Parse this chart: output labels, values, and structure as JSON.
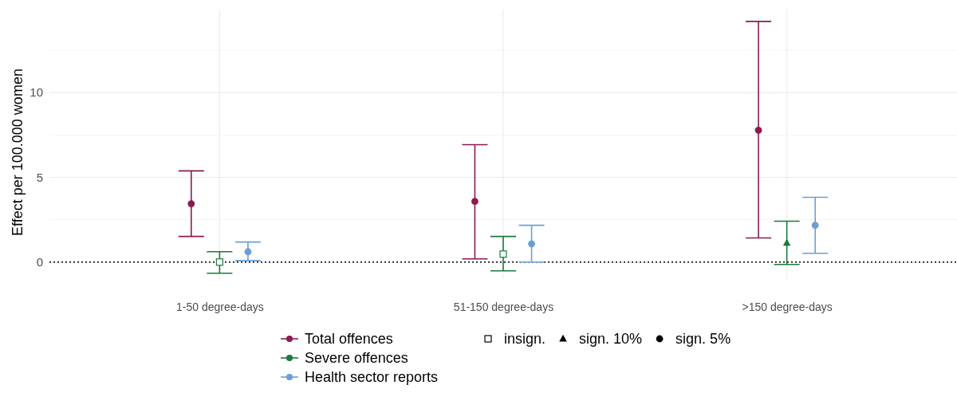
{
  "chart_data": {
    "type": "scatter",
    "ylabel": "Effect per 100.000 women",
    "categories": [
      "1-50 degree-days",
      "51-150 degree-days",
      ">150 degree-days"
    ],
    "series": [
      {
        "name": "Total offences",
        "color": "#8b1a50",
        "marker": "circle",
        "values": [
          3.44,
          3.58,
          7.78
        ],
        "errors": [
          [
            1.51,
            5.38
          ],
          [
            0.19,
            6.93
          ],
          [
            1.42,
            14.2
          ]
        ]
      },
      {
        "name": "Severe offences",
        "color": "#1a7a3c",
        "marker": "square",
        "values": [
          0.0,
          0.47,
          null
        ],
        "errors": [
          [
            -0.66,
            0.61
          ],
          [
            -0.52,
            1.51
          ],
          null
        ]
      },
      {
        "name": "Health sector reports",
        "color": "#6b9fd4",
        "marker": "circle",
        "values": [
          0.61,
          1.08,
          2.17
        ],
        "errors": [
          [
            0.09,
            1.18
          ],
          [
            0.0,
            2.17
          ],
          [
            0.52,
            3.82
          ]
        ]
      },
      {
        "color": "#1a7a3c",
        "marker": "triangle",
        "values": [
          null,
          null,
          1.13
        ],
        "errors": [
          null,
          null,
          [
            -0.14,
            2.41
          ]
        ]
      }
    ],
    "annotations": [
      "insign.",
      "sign. 10%",
      "sign. 5%"
    ],
    "ylim": [
      -1,
      14.9
    ],
    "yticks": [
      0,
      {
        "value": 2.5,
        "label": null
      },
      5,
      {
        "value": 7.5,
        "label": null
      },
      10,
      {
        "value": 12.5,
        "label": null
      }
    ],
    "ref_lines": [
      {
        "axis": "y",
        "value": 0,
        "color": "#000000",
        "line_style": "dotted"
      }
    ],
    "grid": true,
    "legend": "bottom"
  }
}
